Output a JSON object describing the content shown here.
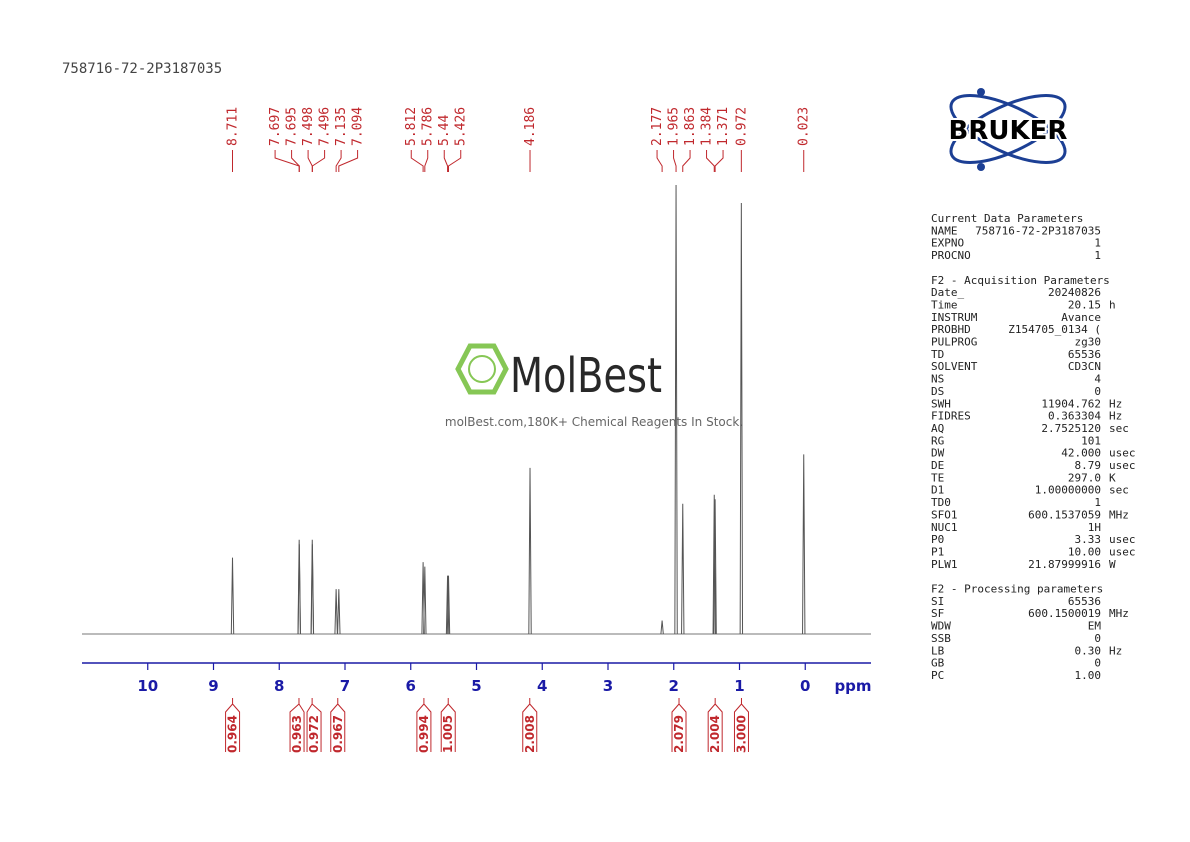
{
  "chart_data": {
    "type": "spectrum",
    "title": "758716-72-2P3187035",
    "x_label": "ppm",
    "xlim": [
      11,
      -1
    ],
    "xticks": [
      10,
      9,
      8,
      7,
      6,
      5,
      4,
      3,
      2,
      1,
      0
    ],
    "x": [
      8.711,
      7.697,
      7.695,
      7.498,
      7.496,
      7.135,
      7.094,
      5.812,
      5.786,
      5.44,
      5.426,
      4.186,
      2.177,
      1.965,
      1.863,
      1.384,
      1.371,
      0.972,
      0.023
    ],
    "values": [
      17,
      21,
      20,
      21,
      20,
      10,
      10,
      16,
      15,
      13,
      13,
      37,
      3,
      100,
      29,
      31,
      30,
      96,
      40
    ],
    "color": "#555555",
    "label_color": "#c0282d",
    "axis_color": "#1a1aa6",
    "integrals": {
      "x": [
        8.71,
        7.7,
        7.5,
        7.11,
        5.8,
        5.43,
        4.19,
        1.92,
        1.37,
        0.97
      ],
      "values": [
        0.964,
        0.963,
        0.972,
        0.967,
        0.994,
        1.005,
        2.008,
        2.079,
        2.004,
        3.0
      ],
      "value_labels": [
        "0.964",
        "0.963",
        "0.972",
        "0.967",
        "0.994",
        "1.005",
        "2.008",
        "2.079",
        "2.004",
        "3.000"
      ]
    }
  },
  "logo": {
    "brand": "BRUKER"
  },
  "watermark": {
    "name": "MolBest",
    "tagline": "molBest.com,180K+ Chemical Reagents In Stock."
  },
  "parameters": [
    {
      "title": "Current Data Parameters",
      "rows": [
        [
          "NAME",
          "758716-72-2P3187035"
        ],
        [
          "EXPNO",
          "1"
        ],
        [
          "PROCNO",
          "1"
        ]
      ]
    },
    {
      "title": "F2 - Acquisition Parameters",
      "rows": [
        [
          "Date_",
          "20240826"
        ],
        [
          "Time",
          "20.15",
          "h"
        ],
        [
          "INSTRUM",
          "Avance"
        ],
        [
          "PROBHD",
          "Z154705_0134 ("
        ],
        [
          "PULPROG",
          "zg30"
        ],
        [
          "TD",
          "65536"
        ],
        [
          "SOLVENT",
          "CD3CN"
        ],
        [
          "NS",
          "4"
        ],
        [
          "DS",
          "0"
        ],
        [
          "SWH",
          "11904.762",
          "Hz"
        ],
        [
          "FIDRES",
          "0.363304",
          "Hz"
        ],
        [
          "AQ",
          "2.7525120",
          "sec"
        ],
        [
          "RG",
          "101"
        ],
        [
          "DW",
          "42.000",
          "usec"
        ],
        [
          "DE",
          "8.79",
          "usec"
        ],
        [
          "TE",
          "297.0",
          "K"
        ],
        [
          "D1",
          "1.00000000",
          "sec"
        ],
        [
          "TD0",
          "1"
        ],
        [
          "SFO1",
          "600.1537059",
          "MHz"
        ],
        [
          "NUC1",
          "1H"
        ],
        [
          "P0",
          "3.33",
          "usec"
        ],
        [
          "P1",
          "10.00",
          "usec"
        ],
        [
          "PLW1",
          "21.87999916",
          "W"
        ]
      ]
    },
    {
      "title": "F2 - Processing parameters",
      "rows": [
        [
          "SI",
          "65536"
        ],
        [
          "SF",
          "600.1500019",
          "MHz"
        ],
        [
          "WDW",
          "EM"
        ],
        [
          "SSB",
          "0"
        ],
        [
          "LB",
          "0.30",
          "Hz"
        ],
        [
          "GB",
          "0"
        ],
        [
          "PC",
          "1.00"
        ]
      ]
    }
  ]
}
